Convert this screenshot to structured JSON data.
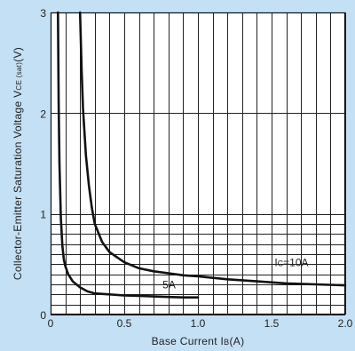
{
  "chart_data": {
    "type": "line",
    "xlabel": "Base Current IB(A)",
    "xlabel_parts": {
      "pre": "Base Current I",
      "sub": "B",
      "post": "(A)"
    },
    "ylabel": "Collector-Emitter Saturation Voltage VCE(sat)(V)",
    "ylabel_parts": {
      "pre": "Collector-Emitter Saturation Voltage V",
      "sub": "CE (sat)",
      "post": "(V)"
    },
    "xlim": [
      0,
      2.0
    ],
    "ylim": [
      0,
      3
    ],
    "x_ticks": [
      0,
      0.5,
      1.0,
      1.5,
      2.0
    ],
    "x_tick_labels": [
      "0",
      "0.5",
      "1.0",
      "1.5",
      "2.0"
    ],
    "y_ticks": [
      0,
      1,
      2,
      3
    ],
    "y_tick_labels": [
      "0",
      "1",
      "2",
      "3"
    ],
    "grid": true,
    "grid_x_step": 0.1,
    "grid_y_minor": [
      0.1,
      0.2,
      0.3,
      0.4,
      0.5,
      0.6,
      0.7,
      0.8,
      0.9,
      1.0,
      2.0,
      3.0
    ],
    "series": [
      {
        "name": "IC=10A",
        "label_parts": {
          "pre": "I",
          "sub": "C",
          "post": "=10A"
        },
        "label_at": [
          1.52,
          0.48
        ],
        "x": [
          0.2,
          0.21,
          0.22,
          0.24,
          0.26,
          0.28,
          0.3,
          0.35,
          0.4,
          0.5,
          0.6,
          0.7,
          0.8,
          0.9,
          1.0,
          1.2,
          1.4,
          1.6,
          1.8,
          2.0
        ],
        "y": [
          3.0,
          2.45,
          2.05,
          1.58,
          1.28,
          1.06,
          0.9,
          0.72,
          0.62,
          0.52,
          0.46,
          0.43,
          0.41,
          0.39,
          0.38,
          0.35,
          0.33,
          0.31,
          0.3,
          0.29
        ]
      },
      {
        "name": "5A",
        "label_parts": {
          "pre": "5A",
          "sub": "",
          "post": ""
        },
        "label_at": [
          0.76,
          0.26
        ],
        "x": [
          0.05,
          0.055,
          0.06,
          0.07,
          0.08,
          0.09,
          0.1,
          0.12,
          0.15,
          0.2,
          0.25,
          0.3,
          0.4,
          0.5,
          0.6,
          0.7,
          0.8,
          0.9,
          1.0
        ],
        "y": [
          3.0,
          2.1,
          1.5,
          0.95,
          0.68,
          0.55,
          0.48,
          0.4,
          0.33,
          0.27,
          0.23,
          0.21,
          0.2,
          0.19,
          0.185,
          0.18,
          0.175,
          0.17,
          0.17
        ]
      }
    ]
  }
}
